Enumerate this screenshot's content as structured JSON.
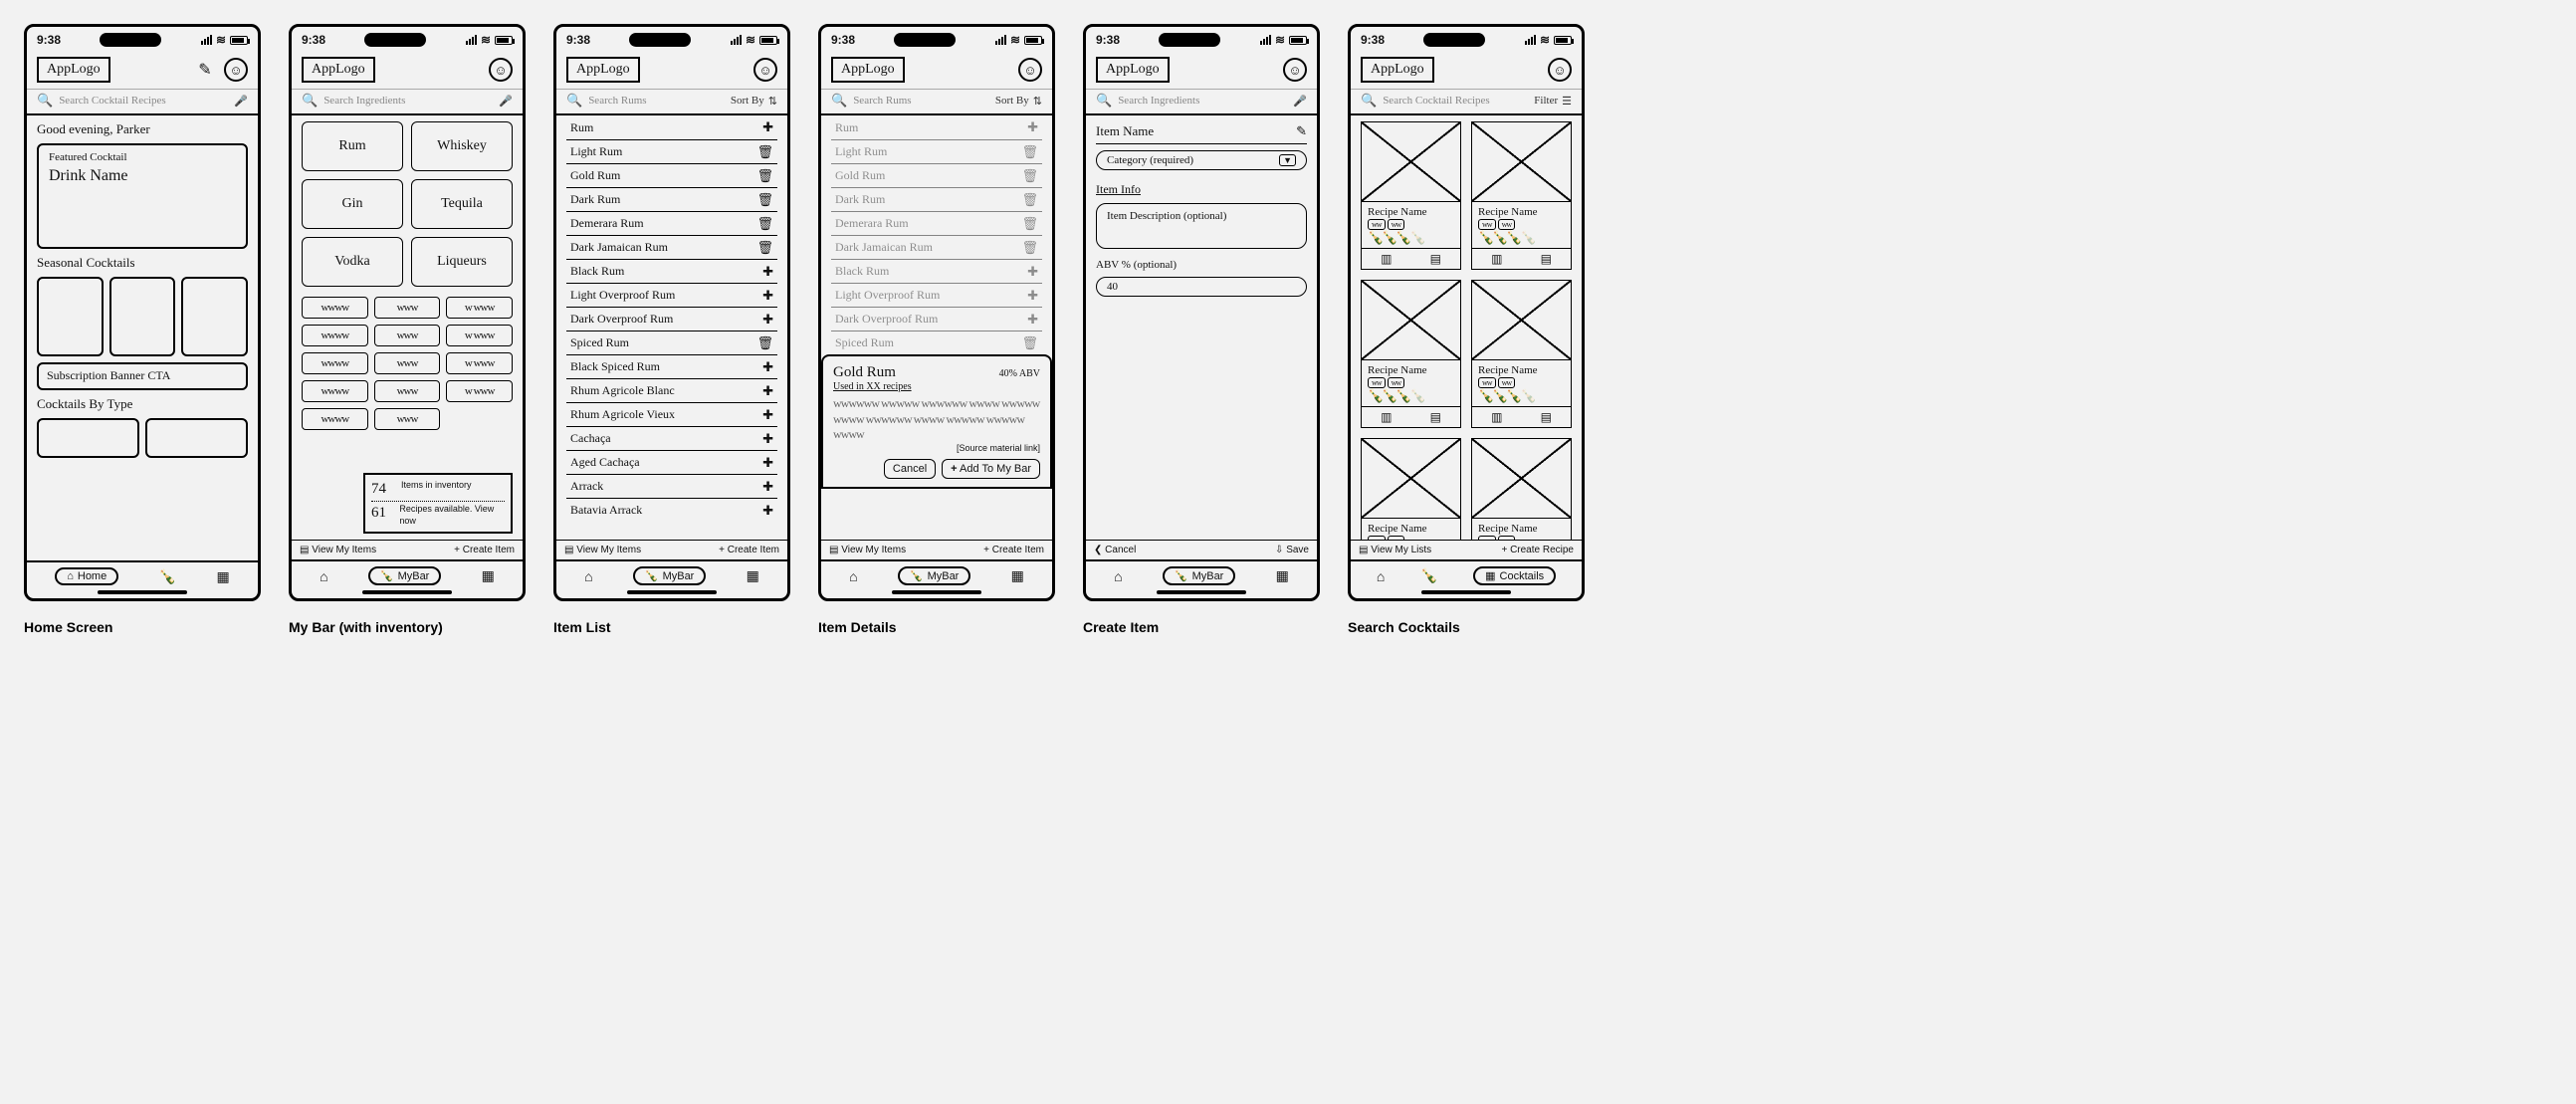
{
  "status": {
    "time": "9:38"
  },
  "logo": "AppLogo",
  "captions": {
    "home": "Home Screen",
    "mybar": "My Bar (with inventory)",
    "itemlist": "Item List",
    "itemdetails": "Item Details",
    "createitem": "Create Item",
    "search": "Search Cocktails"
  },
  "home": {
    "search_ph": "Search Cocktail Recipes",
    "greeting": "Good evening, Parker",
    "featured_label": "Featured Cocktail",
    "featured_name": "Drink Name",
    "seasonal": "Seasonal Cocktails",
    "banner": "Subscription Banner CTA",
    "bytype": "Cocktails By Type",
    "nav_home": "Home"
  },
  "mybar": {
    "search_ph": "Search Ingredients",
    "cats": [
      "Rum",
      "Whiskey",
      "Gin",
      "Tequila",
      "Vodka",
      "Liqueurs"
    ],
    "inv_count": "74",
    "inv_count_label": "Items in inventory",
    "rec_count": "61",
    "rec_count_label": "Recipes available. View now",
    "view": "View My Items",
    "create": "+ Create Item",
    "nav_mybar": "MyBar"
  },
  "itemlist": {
    "search_ph": "Search Rums",
    "sortby": "Sort By",
    "rows": [
      {
        "name": "Rum",
        "action": "add"
      },
      {
        "name": "Light Rum",
        "action": "del"
      },
      {
        "name": "Gold Rum",
        "action": "del"
      },
      {
        "name": "Dark Rum",
        "action": "del"
      },
      {
        "name": "Demerara Rum",
        "action": "del"
      },
      {
        "name": "Dark Jamaican Rum",
        "action": "del"
      },
      {
        "name": "Black Rum",
        "action": "add"
      },
      {
        "name": "Light Overproof Rum",
        "action": "add"
      },
      {
        "name": "Dark Overproof Rum",
        "action": "add"
      },
      {
        "name": "Spiced Rum",
        "action": "del"
      },
      {
        "name": "Black Spiced Rum",
        "action": "add"
      },
      {
        "name": "Rhum Agricole Blanc",
        "action": "add"
      },
      {
        "name": "Rhum Agricole Vieux",
        "action": "add"
      },
      {
        "name": "Cachaça",
        "action": "add"
      },
      {
        "name": "Aged Cachaça",
        "action": "add"
      },
      {
        "name": "Arrack",
        "action": "add"
      },
      {
        "name": "Batavia Arrack",
        "action": "add"
      }
    ]
  },
  "itemdetails": {
    "title": "Gold Rum",
    "abv": "40% ABV",
    "usedin": "Used in XX recipes",
    "source": "[Source material link]",
    "cancel": "Cancel",
    "add": "Add To My Bar"
  },
  "createitem": {
    "search_ph": "Search Ingredients",
    "name_ph": "Item Name",
    "cat_ph": "Category (required)",
    "info_label": "Item Info",
    "desc_ph": "Item Description (optional)",
    "abv_label": "ABV % (optional)",
    "abv_val": "40",
    "cancel": "Cancel",
    "save": "Save"
  },
  "searchscreen": {
    "search_ph": "Search Cocktail Recipes",
    "filter": "Filter",
    "recipe": "Recipe Name",
    "view": "View My Lists",
    "create": "+ Create Recipe",
    "nav_cocktails": "Cocktails"
  }
}
